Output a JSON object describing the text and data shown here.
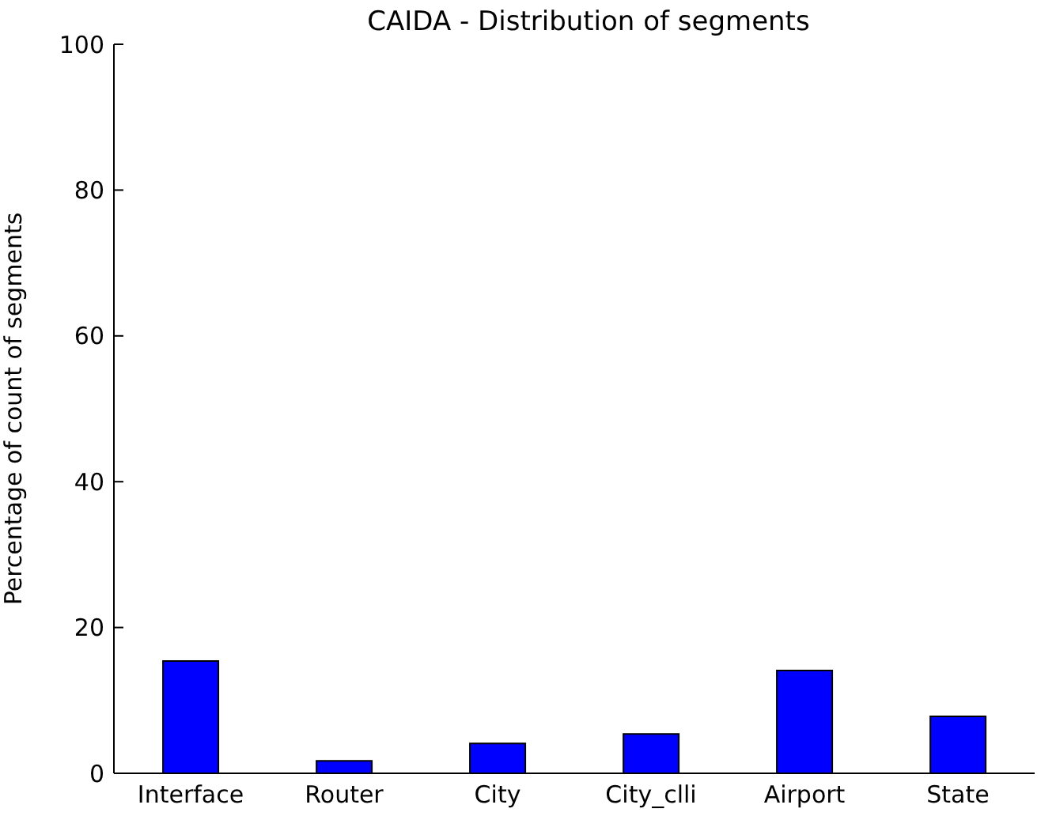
{
  "chart_data": {
    "type": "bar",
    "title": "CAIDA - Distribution of segments",
    "ylabel": "Percentage of count of segments",
    "categories": [
      "Interface",
      "Router",
      "City",
      "City_clli",
      "Airport",
      "State"
    ],
    "values": [
      15.4,
      1.7,
      4.1,
      5.4,
      14.1,
      7.8
    ],
    "color": "#0000ff",
    "ylim": [
      0,
      100
    ],
    "yticks": [
      0,
      20,
      40,
      60,
      80,
      100
    ],
    "grid": false,
    "legend": false
  }
}
